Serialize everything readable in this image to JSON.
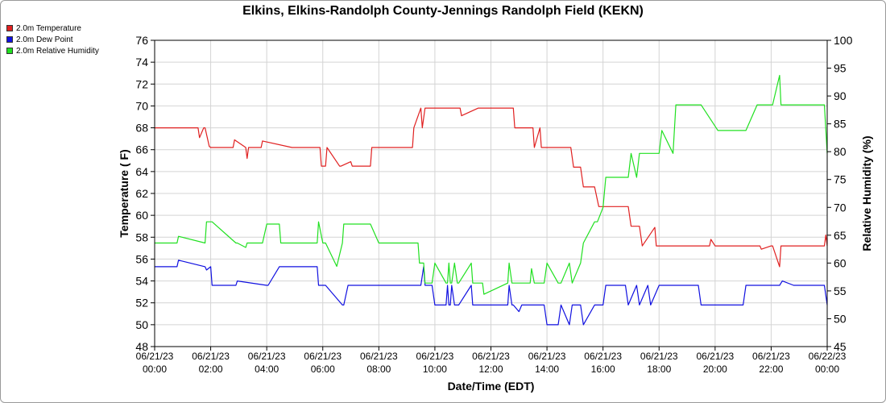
{
  "chart_data": {
    "type": "line",
    "title": "Elkins, Elkins-Randolph County-Jennings Randolph Field (KEKN)",
    "xlabel": "Date/Time (EDT)",
    "ylabel": "Temperature ( F)",
    "y2label": "Relative Humidity (%)",
    "ylim": [
      48,
      76
    ],
    "y2lim": [
      45,
      100
    ],
    "xlim_hours": [
      0,
      24
    ],
    "grid": true,
    "legend_placement": "top-left",
    "y_ticks": [
      "48",
      "50",
      "52",
      "54",
      "56",
      "58",
      "60",
      "62",
      "64",
      "66",
      "68",
      "70",
      "72",
      "74",
      "76"
    ],
    "y2_ticks": [
      "45",
      "50",
      "55",
      "60",
      "65",
      "70",
      "75",
      "80",
      "85",
      "90",
      "95",
      "100"
    ],
    "x_ticks": [
      {
        "line1": "06/21/23",
        "line2": "00:00"
      },
      {
        "line1": "06/21/23",
        "line2": "02:00"
      },
      {
        "line1": "06/21/23",
        "line2": "04:00"
      },
      {
        "line1": "06/21/23",
        "line2": "06:00"
      },
      {
        "line1": "06/21/23",
        "line2": "08:00"
      },
      {
        "line1": "06/21/23",
        "line2": "10:00"
      },
      {
        "line1": "06/21/23",
        "line2": "12:00"
      },
      {
        "line1": "06/21/23",
        "line2": "14:00"
      },
      {
        "line1": "06/21/23",
        "line2": "16:00"
      },
      {
        "line1": "06/21/23",
        "line2": "18:00"
      },
      {
        "line1": "06/21/23",
        "line2": "20:00"
      },
      {
        "line1": "06/21/23",
        "line2": "22:00"
      },
      {
        "line1": "06/22/23",
        "line2": "00:00"
      }
    ],
    "series": [
      {
        "name": "2.0m Temperature",
        "color": "#e02020",
        "axis": "left",
        "x": [
          0,
          1.55,
          1.6,
          1.75,
          1.8,
          1.95,
          2.0,
          2.8,
          2.85,
          3.25,
          3.3,
          3.35,
          3.8,
          3.85,
          4.9,
          4.95,
          5.9,
          5.95,
          6.1,
          6.15,
          6.6,
          6.65,
          7.0,
          7.05,
          7.7,
          7.75,
          9.2,
          9.25,
          9.5,
          9.55,
          9.65,
          9.7,
          10.9,
          10.95,
          11.55,
          11.6,
          12.8,
          12.85,
          13.5,
          13.55,
          13.75,
          13.8,
          14.85,
          14.95,
          15.2,
          15.3,
          15.7,
          15.85,
          15.95,
          16.0,
          16.9,
          17.0,
          17.3,
          17.4,
          17.85,
          17.9,
          18.0,
          18.1,
          19.8,
          19.85,
          20.0,
          20.05,
          21.6,
          21.65,
          22.0,
          22.05,
          22.3,
          22.35,
          22.4,
          22.45,
          23.9,
          23.95,
          24.0
        ],
        "values": [
          68,
          68,
          67.1,
          68,
          68,
          66.3,
          66.2,
          66.2,
          66.9,
          66.2,
          65.2,
          66.2,
          66.2,
          66.8,
          66.2,
          66.2,
          66.2,
          64.5,
          64.5,
          66.2,
          64.5,
          64.5,
          64.9,
          64.5,
          64.5,
          66.2,
          66.2,
          68,
          69.8,
          68,
          69.8,
          69.8,
          69.8,
          69.1,
          69.8,
          69.8,
          69.8,
          68,
          68,
          66.2,
          68,
          66.2,
          66.2,
          64.4,
          64.4,
          62.6,
          62.6,
          60.8,
          60.8,
          60.8,
          60.8,
          59,
          59,
          57.2,
          58.9,
          57.2,
          57.2,
          57.2,
          57.2,
          57.8,
          57.2,
          57.2,
          57.2,
          56.9,
          57.2,
          57.2,
          55.3,
          57.2,
          57.2,
          57.2,
          57.2,
          58.2,
          57.2
        ]
      },
      {
        "name": "2.0m Dew Point",
        "color": "#1010e0",
        "axis": "left",
        "x": [
          0,
          0.8,
          0.85,
          1.8,
          1.85,
          2.0,
          2.05,
          2.9,
          2.95,
          4.0,
          4.05,
          4.45,
          4.5,
          5.8,
          5.85,
          6.0,
          6.1,
          6.7,
          6.75,
          6.9,
          7.0,
          9.4,
          9.5,
          9.6,
          9.65,
          9.9,
          10.0,
          10.4,
          10.45,
          10.5,
          10.55,
          10.6,
          10.7,
          10.8,
          10.85,
          11.3,
          11.35,
          12.6,
          12.65,
          12.75,
          12.8,
          13.0,
          13.1,
          13.9,
          14.0,
          14.4,
          14.5,
          14.8,
          14.9,
          15.2,
          15.3,
          15.7,
          15.8,
          16.0,
          16.1,
          16.8,
          16.9,
          17.2,
          17.3,
          17.6,
          17.7,
          18.0,
          18.1,
          19.4,
          19.5,
          20.1,
          20.2,
          21.0,
          21.1,
          21.6,
          21.7,
          22.3,
          22.4,
          22.8,
          22.9,
          23.9,
          24.0
        ],
        "values": [
          55.3,
          55.3,
          55.9,
          55.3,
          55,
          55.3,
          53.6,
          53.6,
          54,
          53.6,
          53.6,
          55.3,
          55.3,
          55.3,
          53.6,
          53.6,
          53.6,
          51.8,
          51.8,
          53.6,
          53.6,
          53.6,
          53.6,
          55.3,
          53.6,
          53.6,
          51.8,
          51.8,
          53.6,
          51.8,
          51.8,
          53.6,
          51.8,
          51.8,
          51.8,
          53.6,
          51.8,
          51.8,
          53.6,
          51.8,
          51.8,
          51.2,
          51.8,
          51.8,
          50,
          50,
          51.8,
          50,
          51.8,
          51.8,
          50,
          51.8,
          51.8,
          51.8,
          53.6,
          53.6,
          51.8,
          53.6,
          51.8,
          53.6,
          51.8,
          53.6,
          53.6,
          53.6,
          51.8,
          51.8,
          51.8,
          51.8,
          53.6,
          53.6,
          53.6,
          53.6,
          54,
          53.6,
          53.6,
          53.6,
          51.8
        ]
      },
      {
        "name": "2.0m Relative Humidity",
        "color": "#20e020",
        "axis": "right",
        "x": [
          0,
          0.8,
          0.85,
          1.8,
          1.85,
          2.05,
          2.9,
          2.95,
          3.25,
          3.3,
          3.8,
          3.85,
          4.0,
          4.05,
          4.45,
          4.5,
          4.9,
          5.8,
          5.85,
          6.0,
          6.1,
          6.5,
          6.7,
          6.75,
          6.9,
          7.0,
          7.7,
          8.0,
          8.05,
          9.2,
          9.4,
          9.45,
          9.6,
          9.65,
          9.9,
          10.0,
          10.4,
          10.45,
          10.5,
          10.55,
          10.6,
          10.7,
          10.8,
          10.85,
          11.3,
          11.35,
          11.7,
          11.75,
          12.6,
          12.65,
          12.75,
          12.8,
          13.1,
          13.4,
          13.45,
          13.55,
          13.6,
          13.9,
          14.0,
          14.4,
          14.5,
          14.8,
          14.9,
          15.2,
          15.3,
          15.7,
          15.8,
          16.0,
          16.1,
          16.4,
          16.5,
          16.8,
          16.9,
          17.0,
          17.2,
          17.3,
          17.6,
          17.7,
          18.0,
          18.1,
          18.5,
          18.6,
          19.4,
          19.5,
          20.1,
          20.2,
          21.0,
          21.1,
          21.5,
          21.6,
          22.0,
          22.05,
          22.3,
          22.35,
          22.4,
          22.45,
          23.9,
          24.0
        ],
        "values": [
          63.6,
          63.6,
          64.8,
          63.6,
          67.4,
          67.4,
          63.6,
          63.6,
          62.8,
          63.6,
          63.6,
          63.6,
          67,
          67,
          67,
          63.6,
          63.6,
          63.6,
          67.4,
          63.6,
          63.6,
          59.4,
          63.6,
          67,
          67,
          67,
          67,
          63.6,
          63.6,
          63.6,
          63.6,
          60,
          60,
          56.4,
          56.4,
          60,
          56.4,
          56.4,
          60,
          56.4,
          56.4,
          60,
          56.4,
          56.4,
          60,
          56.4,
          56.4,
          54.4,
          56.4,
          60,
          56.4,
          56.4,
          56.4,
          56.4,
          59,
          56.4,
          56.4,
          56.4,
          60,
          56.4,
          56.4,
          60,
          56.4,
          60,
          63.6,
          67.4,
          67.4,
          70,
          75.4,
          75.4,
          75.4,
          75.4,
          75.4,
          79.7,
          75.4,
          79.7,
          79.7,
          79.7,
          79.7,
          83.8,
          79.7,
          88.4,
          88.4,
          88.4,
          83.8,
          83.8,
          83.8,
          83.8,
          88.4,
          88.4,
          88.4,
          88.4,
          93.7,
          88.4,
          88.4,
          88.4,
          88.4,
          79.7
        ]
      }
    ]
  },
  "legend": {
    "items": [
      {
        "label": "2.0m Temperature",
        "color": "#e02020"
      },
      {
        "label": "2.0m Dew Point",
        "color": "#1010e0"
      },
      {
        "label": "2.0m Relative Humidity",
        "color": "#20e020"
      }
    ]
  }
}
